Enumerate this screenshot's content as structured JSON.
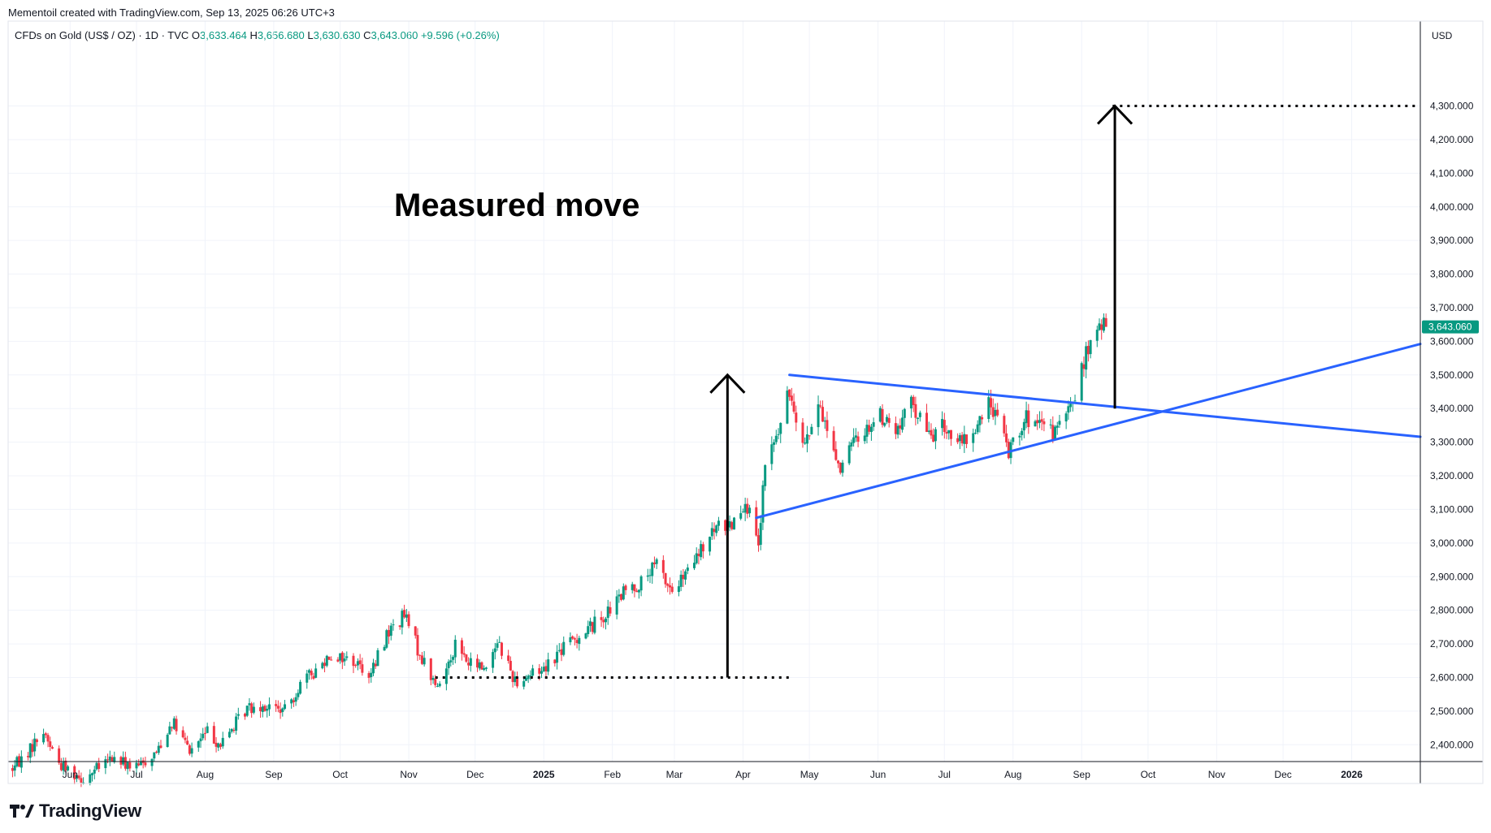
{
  "credit": "Mementoil created with TradingView.com, Sep 13, 2025 06:26 UTC+3",
  "symbol": {
    "name": "CFDs on Gold (US$ / OZ) · 1D · TVC",
    "open_label": "O",
    "open": "3,633.464",
    "high_label": "H",
    "high": "3,656.680",
    "low_label": "L",
    "low": "3,630.630",
    "close_label": "C",
    "close": "3,643.060",
    "change": "+9.596 (+0.26%)"
  },
  "axis_unit": "USD",
  "brand": "TradingView",
  "colors": {
    "up": "#089981",
    "down": "#F23645",
    "trendline": "#2962FF",
    "annotation": "#000000",
    "price_label_bg": "#089981",
    "grid": "#F0F3FA"
  },
  "chart_data": {
    "type": "candlestick",
    "title": "",
    "annotations": [
      {
        "type": "text",
        "text": "Measured move"
      },
      {
        "type": "dotted_hline",
        "y": 2600,
        "x_from": "2024-11-13",
        "x_to": "2025-04-23"
      },
      {
        "type": "arrow_up",
        "x": "2025-03-25",
        "y_from": 2600,
        "y_to": 3500
      },
      {
        "type": "dotted_hline",
        "y": 4300,
        "x_from": "2025-09-15",
        "x_to": "2026-01-31"
      },
      {
        "type": "arrow_up",
        "x": "2025-09-16",
        "y_from": 3400,
        "y_to": 4300
      }
    ],
    "trendlines": [
      {
        "name": "",
        "from": {
          "x": "2025-04-22",
          "y": 3500
        },
        "to": {
          "x": "2026-02-01",
          "y": 3316
        }
      },
      {
        "name": "",
        "from": {
          "x": "2025-04-07",
          "y": 3075
        },
        "to": {
          "x": "2026-02-01",
          "y": 3592
        }
      }
    ],
    "current_price": {
      "value": 3643.06,
      "label": "3,643.060"
    },
    "y_axis": {
      "range": [
        2350,
        4480
      ],
      "ticks": [
        2400,
        2500,
        2600,
        2700,
        2800,
        2900,
        3000,
        3100,
        3200,
        3300,
        3400,
        3500,
        3600,
        3700,
        3800,
        3900,
        4000,
        4100,
        4200,
        4300
      ],
      "tick_labels": [
        "2,400.000",
        "2,500.000",
        "2,600.000",
        "2,700.000",
        "2,800.000",
        "2,900.000",
        "3,000.000",
        "3,100.000",
        "3,200.000",
        "3,300.000",
        "3,400.000",
        "3,500.000",
        "3,600.000",
        "3,700.000",
        "3,800.000",
        "3,900.000",
        "4,000.000",
        "4,100.000",
        "4,200.000",
        "4,300.000"
      ]
    },
    "x_axis": {
      "range": [
        "2024-05-04",
        "2026-02-01"
      ],
      "ticks": [
        {
          "label": "Jun",
          "date": "2024-06-01",
          "bold": false
        },
        {
          "label": "Jul",
          "date": "2024-07-01",
          "bold": false
        },
        {
          "label": "Aug",
          "date": "2024-08-01",
          "bold": false
        },
        {
          "label": "Sep",
          "date": "2024-09-01",
          "bold": false
        },
        {
          "label": "Oct",
          "date": "2024-10-01",
          "bold": false
        },
        {
          "label": "Nov",
          "date": "2024-11-01",
          "bold": false
        },
        {
          "label": "Dec",
          "date": "2024-12-01",
          "bold": false
        },
        {
          "label": "2025",
          "date": "2025-01-01",
          "bold": true
        },
        {
          "label": "Feb",
          "date": "2025-02-01",
          "bold": false
        },
        {
          "label": "Mar",
          "date": "2025-03-01",
          "bold": false
        },
        {
          "label": "Apr",
          "date": "2025-04-01",
          "bold": false
        },
        {
          "label": "May",
          "date": "2025-05-01",
          "bold": false
        },
        {
          "label": "Jun",
          "date": "2025-06-01",
          "bold": false
        },
        {
          "label": "Jul",
          "date": "2025-07-01",
          "bold": false
        },
        {
          "label": "Aug",
          "date": "2025-08-01",
          "bold": false
        },
        {
          "label": "Sep",
          "date": "2025-09-01",
          "bold": false
        },
        {
          "label": "Oct",
          "date": "2025-10-01",
          "bold": false
        },
        {
          "label": "Nov",
          "date": "2025-11-01",
          "bold": false
        },
        {
          "label": "Dec",
          "date": "2025-12-01",
          "bold": false
        },
        {
          "label": "2026",
          "date": "2026-01-01",
          "bold": true
        }
      ]
    },
    "price_path": [
      [
        "2024-05-06",
        2330
      ],
      [
        "2024-05-13",
        2380
      ],
      [
        "2024-05-20",
        2440
      ],
      [
        "2024-05-27",
        2345
      ],
      [
        "2024-06-07",
        2300
      ],
      [
        "2024-06-20",
        2360
      ],
      [
        "2024-07-01",
        2330
      ],
      [
        "2024-07-10",
        2380
      ],
      [
        "2024-07-17",
        2470
      ],
      [
        "2024-07-25",
        2380
      ],
      [
        "2024-08-02",
        2440
      ],
      [
        "2024-08-08",
        2400
      ],
      [
        "2024-08-20",
        2510
      ],
      [
        "2024-08-26",
        2520
      ],
      [
        "2024-09-06",
        2500
      ],
      [
        "2024-09-13",
        2580
      ],
      [
        "2024-09-20",
        2620
      ],
      [
        "2024-09-26",
        2670
      ],
      [
        "2024-10-07",
        2650
      ],
      [
        "2024-10-15",
        2610
      ],
      [
        "2024-10-22",
        2730
      ],
      [
        "2024-10-30",
        2785
      ],
      [
        "2024-11-06",
        2670
      ],
      [
        "2024-11-14",
        2565
      ],
      [
        "2024-11-22",
        2700
      ],
      [
        "2024-11-28",
        2640
      ],
      [
        "2024-12-06",
        2630
      ],
      [
        "2024-12-11",
        2715
      ],
      [
        "2024-12-19",
        2590
      ],
      [
        "2024-12-31",
        2625
      ],
      [
        "2025-01-10",
        2690
      ],
      [
        "2025-01-21",
        2745
      ],
      [
        "2025-01-31",
        2800
      ],
      [
        "2025-02-07",
        2860
      ],
      [
        "2025-02-14",
        2880
      ],
      [
        "2025-02-21",
        2935
      ],
      [
        "2025-02-28",
        2855
      ],
      [
        "2025-03-07",
        2910
      ],
      [
        "2025-03-14",
        2985
      ],
      [
        "2025-03-20",
        3045
      ],
      [
        "2025-03-27",
        3060
      ],
      [
        "2025-04-02",
        3130
      ],
      [
        "2025-04-08",
        2980
      ],
      [
        "2025-04-11",
        3235
      ],
      [
        "2025-04-17",
        3330
      ],
      [
        "2025-04-22",
        3450
      ],
      [
        "2025-04-29",
        3300
      ],
      [
        "2025-05-06",
        3400
      ],
      [
        "2025-05-15",
        3220
      ],
      [
        "2025-05-22",
        3310
      ],
      [
        "2025-06-02",
        3380
      ],
      [
        "2025-06-10",
        3330
      ],
      [
        "2025-06-16",
        3420
      ],
      [
        "2025-06-24",
        3320
      ],
      [
        "2025-07-01",
        3345
      ],
      [
        "2025-07-09",
        3290
      ],
      [
        "2025-07-15",
        3340
      ],
      [
        "2025-07-22",
        3420
      ],
      [
        "2025-07-30",
        3275
      ],
      [
        "2025-08-06",
        3375
      ],
      [
        "2025-08-12",
        3345
      ],
      [
        "2025-08-20",
        3330
      ],
      [
        "2025-08-27",
        3400
      ],
      [
        "2025-09-03",
        3560
      ],
      [
        "2025-09-09",
        3640
      ],
      [
        "2025-09-12",
        3643
      ]
    ]
  }
}
